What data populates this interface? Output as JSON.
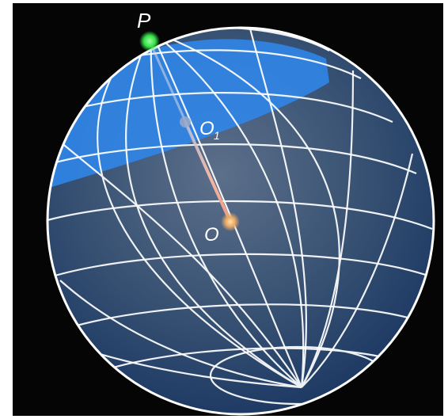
{
  "labels": {
    "point_p": "P",
    "point_o1_main": "O",
    "point_o1_sub": "1",
    "point_o": "O"
  },
  "colors": {
    "background": "#050505",
    "sphere_fill": "#1d3f6b",
    "grid_lines": "#ffffff",
    "cap": "#2f86ea",
    "point_p": "#35e04a",
    "segment": "#f0b0a0",
    "point_o": "#e8b06a"
  }
}
